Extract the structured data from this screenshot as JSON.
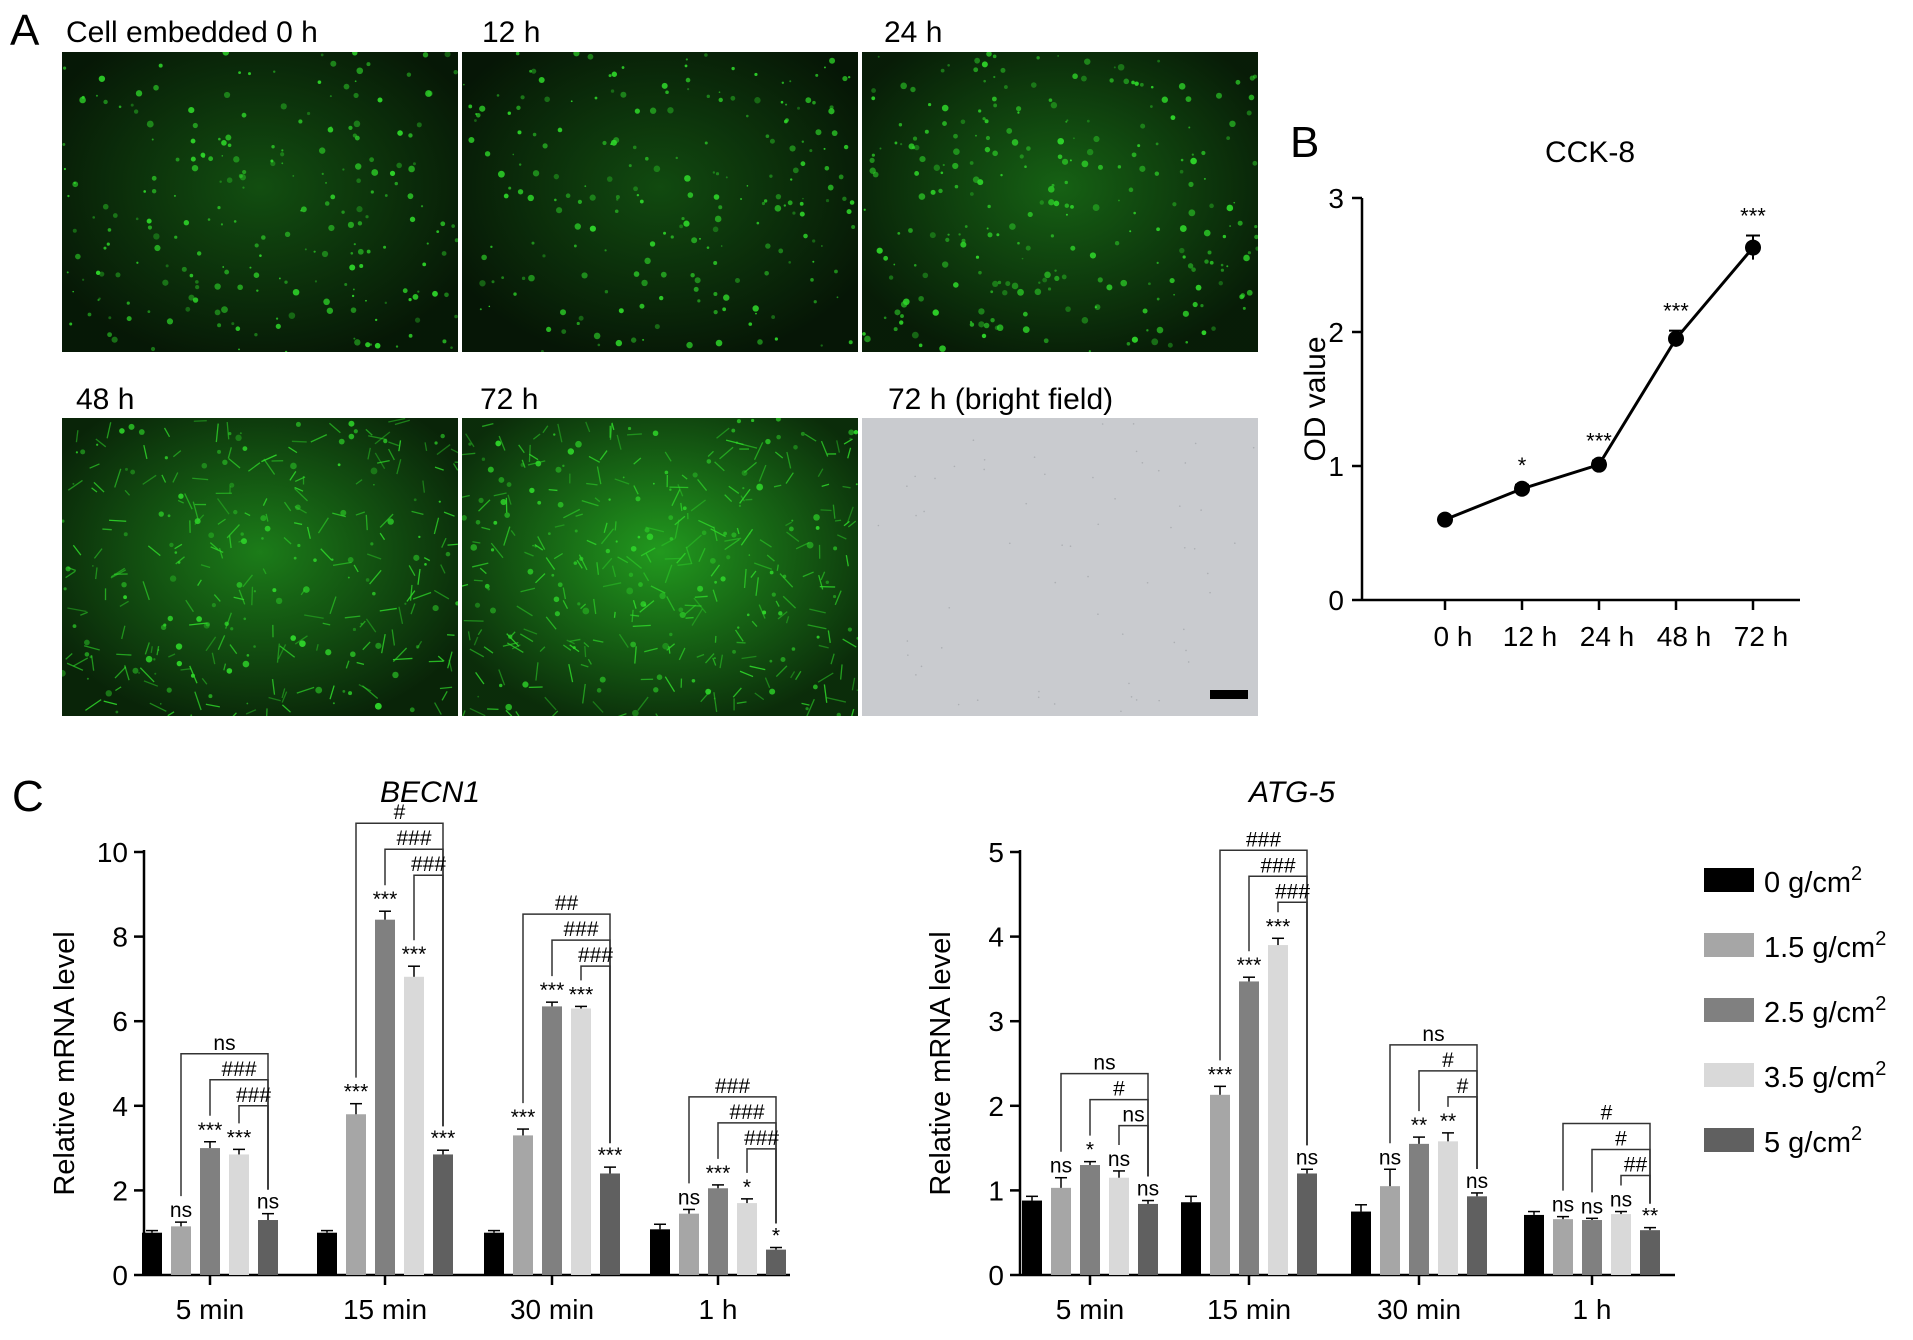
{
  "panels": {
    "a": "A",
    "b": "B",
    "c": "C"
  },
  "micrographs": [
    {
      "label": "Cell embedded 0 h",
      "kind": "fluorescence",
      "density": 0.35
    },
    {
      "label": "12 h",
      "kind": "fluorescence",
      "density": 0.3
    },
    {
      "label": "24 h",
      "kind": "fluorescence",
      "density": 0.5
    },
    {
      "label": "48 h",
      "kind": "fluorescence",
      "density": 0.75
    },
    {
      "label": "72 h",
      "kind": "fluorescence",
      "density": 1.0
    },
    {
      "label": "72 h (bright field)",
      "kind": "brightfield",
      "density": 0
    }
  ],
  "colors": {
    "fluor_green": "#2fd82a",
    "brightfield": "#c9cbcf",
    "series": [
      "#000000",
      "#a6a6a6",
      "#808080",
      "#d9d9d9",
      "#606060"
    ]
  },
  "chart_data": [
    {
      "id": "cck8",
      "type": "line",
      "title": "CCK-8",
      "xlabel": "",
      "ylabel": "OD value",
      "categories": [
        "0 h",
        "12 h",
        "24 h",
        "48 h",
        "72 h"
      ],
      "values": [
        0.6,
        0.83,
        1.01,
        1.95,
        2.63
      ],
      "errors": [
        0.02,
        0.03,
        0.03,
        0.06,
        0.09
      ],
      "annotations": [
        "",
        "*",
        "***",
        "***",
        "***"
      ],
      "ylim": [
        0,
        3
      ],
      "yticks": [
        0,
        1,
        2,
        3
      ]
    },
    {
      "id": "becn1",
      "type": "bar",
      "title": "BECN1",
      "ylabel": "Relative mRNA level",
      "categories": [
        "5 min",
        "15 min",
        "30 min",
        "1 h"
      ],
      "ylim": [
        0,
        10
      ],
      "yticks": [
        0,
        2,
        4,
        6,
        8,
        10
      ],
      "series": [
        {
          "name": "0 g/cm2",
          "values": [
            1.0,
            1.0,
            1.0,
            1.08
          ],
          "errors": [
            0.05,
            0.05,
            0.05,
            0.12
          ],
          "annotations": [
            "",
            "",
            "",
            ""
          ]
        },
        {
          "name": "1.5 g/cm2",
          "values": [
            1.15,
            3.8,
            3.3,
            1.45
          ],
          "errors": [
            0.1,
            0.25,
            0.15,
            0.1
          ],
          "annotations": [
            "ns",
            "***",
            "***",
            "ns"
          ]
        },
        {
          "name": "2.5 g/cm2",
          "values": [
            3.0,
            8.4,
            6.35,
            2.05
          ],
          "errors": [
            0.15,
            0.2,
            0.1,
            0.08
          ],
          "annotations": [
            "***",
            "***",
            "***",
            "***"
          ]
        },
        {
          "name": "3.5 g/cm2",
          "values": [
            2.85,
            7.05,
            6.3,
            1.7
          ],
          "errors": [
            0.12,
            0.25,
            0.05,
            0.1
          ],
          "annotations": [
            "***",
            "***",
            "***",
            "*"
          ]
        },
        {
          "name": "5 g/cm2",
          "values": [
            1.3,
            2.85,
            2.4,
            0.6
          ],
          "errors": [
            0.15,
            0.1,
            0.15,
            0.05
          ],
          "annotations": [
            "ns",
            "***",
            "***",
            "*"
          ]
        }
      ],
      "brackets": [
        [
          [
            "ns",
            1,
            4
          ],
          [
            "###",
            2,
            4
          ],
          [
            "###",
            3,
            4
          ]
        ],
        [
          [
            "#",
            1,
            4
          ],
          [
            "###",
            2,
            4
          ],
          [
            "###",
            3,
            4
          ]
        ],
        [
          [
            "##",
            1,
            4
          ],
          [
            "###",
            2,
            4
          ],
          [
            "###",
            3,
            4
          ]
        ],
        [
          [
            "###",
            1,
            4
          ],
          [
            "###",
            2,
            4
          ],
          [
            "###",
            3,
            4
          ]
        ]
      ]
    },
    {
      "id": "atg5",
      "type": "bar",
      "title": "ATG-5",
      "ylabel": "Relative mRNA level",
      "categories": [
        "5 min",
        "15 min",
        "30 min",
        "1 h"
      ],
      "ylim": [
        0,
        5
      ],
      "yticks": [
        0,
        1,
        2,
        3,
        4,
        5
      ],
      "series": [
        {
          "name": "0 g/cm2",
          "values": [
            0.88,
            0.86,
            0.75,
            0.71
          ],
          "errors": [
            0.05,
            0.07,
            0.08,
            0.04
          ],
          "annotations": [
            "",
            "",
            "",
            ""
          ]
        },
        {
          "name": "1.5 g/cm2",
          "values": [
            1.03,
            2.13,
            1.05,
            0.66
          ],
          "errors": [
            0.12,
            0.1,
            0.2,
            0.03
          ],
          "annotations": [
            "ns",
            "***",
            "ns",
            "ns"
          ]
        },
        {
          "name": "2.5 g/cm2",
          "values": [
            1.3,
            3.47,
            1.55,
            0.65
          ],
          "errors": [
            0.04,
            0.05,
            0.08,
            0.02
          ],
          "annotations": [
            "*",
            "***",
            "**",
            "ns"
          ]
        },
        {
          "name": "3.5 g/cm2",
          "values": [
            1.15,
            3.9,
            1.58,
            0.72
          ],
          "errors": [
            0.08,
            0.08,
            0.1,
            0.03
          ],
          "annotations": [
            "ns",
            "***",
            "**",
            "ns"
          ]
        },
        {
          "name": "5 g/cm2",
          "values": [
            0.84,
            1.2,
            0.93,
            0.53
          ],
          "errors": [
            0.04,
            0.05,
            0.04,
            0.03
          ],
          "annotations": [
            "ns",
            "ns",
            "ns",
            "**"
          ]
        }
      ],
      "brackets": [
        [
          [
            "ns",
            1,
            4
          ],
          [
            "#",
            2,
            4
          ],
          [
            "ns",
            3,
            4
          ]
        ],
        [
          [
            "###",
            1,
            4
          ],
          [
            "###",
            2,
            4
          ],
          [
            "###",
            3,
            4
          ]
        ],
        [
          [
            "ns",
            1,
            4
          ],
          [
            "#",
            2,
            4
          ],
          [
            "#",
            3,
            4
          ]
        ],
        [
          [
            "#",
            1,
            4
          ],
          [
            "#",
            2,
            4
          ],
          [
            "##",
            3,
            4
          ]
        ]
      ]
    }
  ],
  "legend": {
    "items": [
      {
        "text": "0 g/cm",
        "sup": "2"
      },
      {
        "text": "1.5 g/cm",
        "sup": "2"
      },
      {
        "text": "2.5 g/cm",
        "sup": "2"
      },
      {
        "text": "3.5 g/cm",
        "sup": "2"
      },
      {
        "text": "5 g/cm",
        "sup": "2"
      }
    ]
  }
}
